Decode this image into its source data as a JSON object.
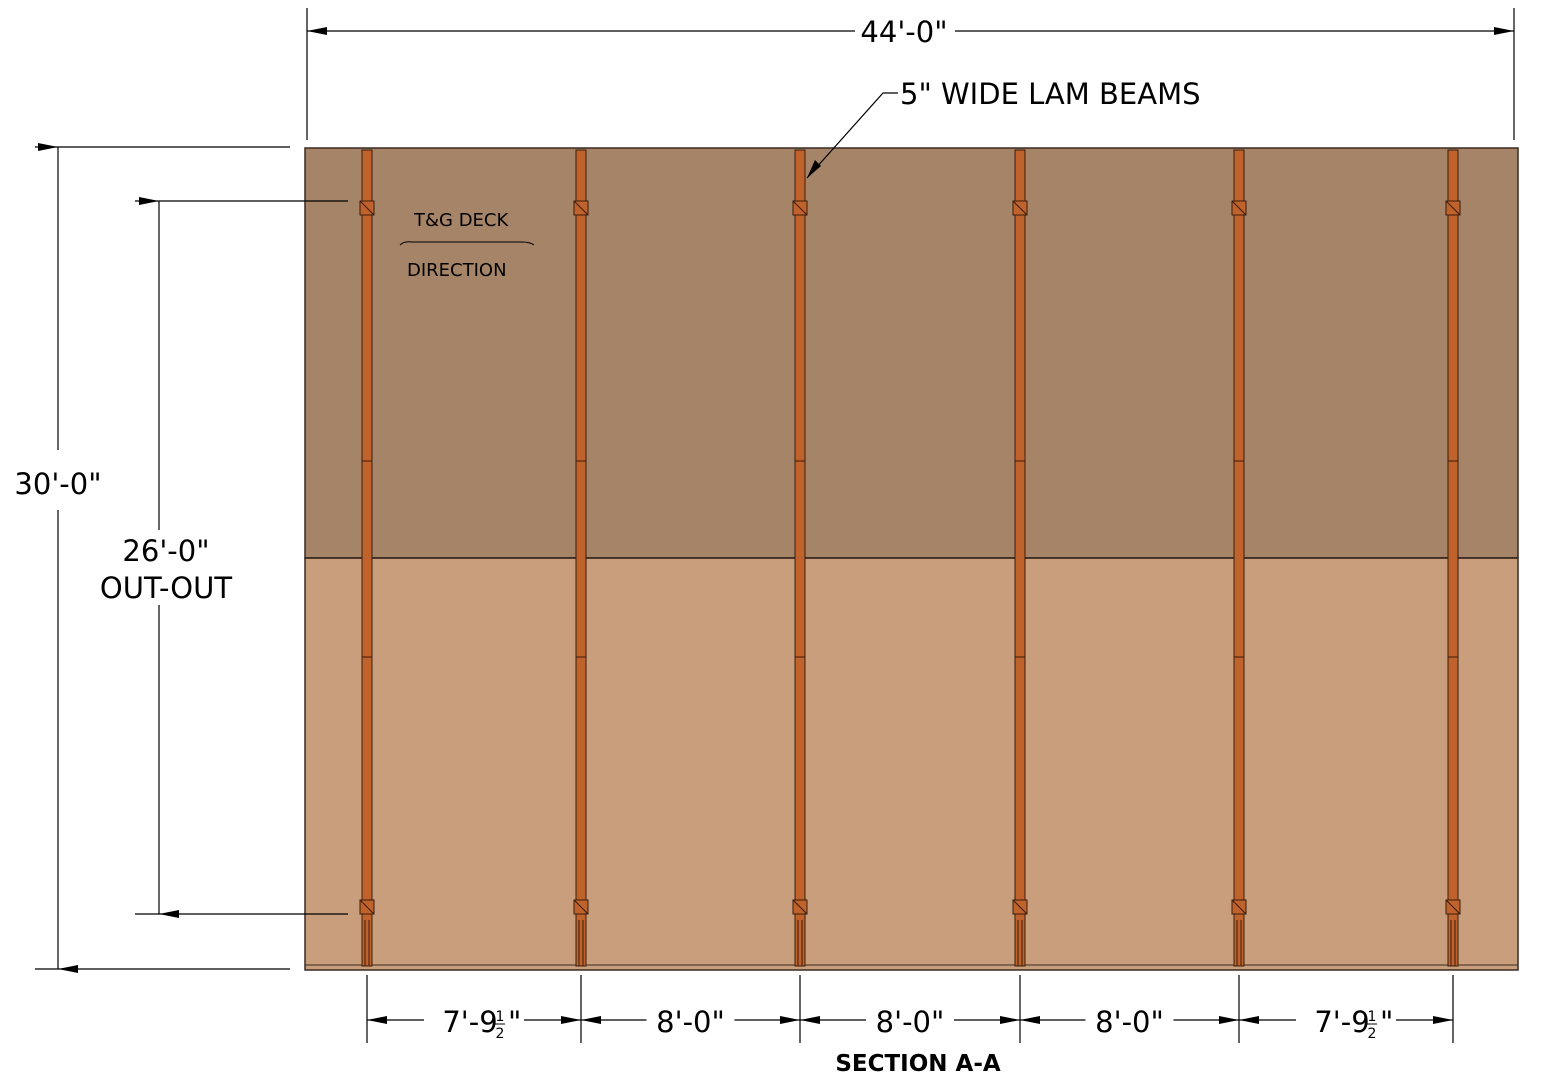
{
  "drawing": {
    "title": "SECTION A-A",
    "overall_width_label": "44'-0\"",
    "overall_depth_label": "30'-0\"",
    "beam_length_label": "26'-0\"",
    "beam_length_sublabel": "OUT-OUT",
    "beam_callout": "5\" WIDE LAM BEAMS",
    "deck_note_line1": "T&G DECK",
    "deck_note_line2": "DIRECTION",
    "spacings": [
      {
        "main": "7'-9",
        "frac_num": "1",
        "frac_den": "2",
        "unit": "\""
      },
      {
        "main": "8'-0\"",
        "frac_num": "",
        "frac_den": "",
        "unit": ""
      },
      {
        "main": "8'-0\"",
        "frac_num": "",
        "frac_den": "",
        "unit": ""
      },
      {
        "main": "8'-0\"",
        "frac_num": "",
        "frac_den": "",
        "unit": ""
      },
      {
        "main": "7'-9",
        "frac_num": "1",
        "frac_den": "2",
        "unit": "\""
      }
    ]
  },
  "colors": {
    "deck_back": "#a68468",
    "deck_front": "#c99e7d",
    "beam": "#c0622c",
    "line": "#000000"
  }
}
